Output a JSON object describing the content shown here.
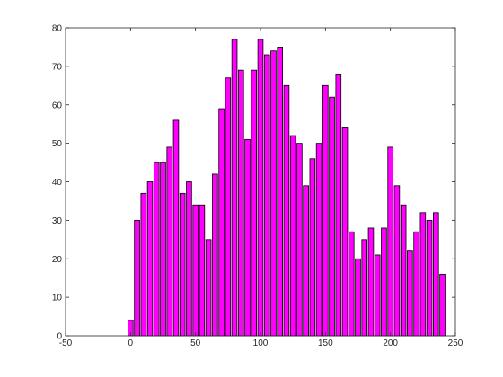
{
  "chart_data": {
    "type": "bar",
    "title": "",
    "xlabel": "",
    "ylabel": "",
    "xlim": [
      -50,
      250
    ],
    "ylim": [
      0,
      80
    ],
    "grid": false,
    "legend": "none",
    "bar_color": "#ff00ff",
    "bar_edge_color": "#000000",
    "x_ticks": [
      -50,
      0,
      50,
      100,
      150,
      200,
      250
    ],
    "y_ticks": [
      0,
      10,
      20,
      30,
      40,
      50,
      60,
      70,
      80
    ],
    "x": [
      0,
      5,
      10,
      15,
      20,
      25,
      30,
      35,
      40,
      45,
      50,
      55,
      60,
      65,
      70,
      75,
      80,
      85,
      90,
      95,
      100,
      105,
      110,
      115,
      120,
      125,
      130,
      135,
      140,
      145,
      150,
      155,
      160,
      165,
      170,
      175,
      180,
      185,
      190,
      195,
      200,
      205,
      210,
      215,
      220,
      225,
      230,
      235,
      240
    ],
    "values": [
      4,
      30,
      37,
      40,
      45,
      45,
      49,
      56,
      37,
      40,
      34,
      34,
      25,
      42,
      59,
      67,
      77,
      69,
      51,
      69,
      77,
      73,
      74,
      75,
      65,
      52,
      50,
      39,
      46,
      50,
      65,
      62,
      68,
      54,
      27,
      20,
      25,
      28,
      21,
      28,
      49,
      39,
      34,
      22,
      27,
      32,
      30,
      32,
      16
    ]
  }
}
